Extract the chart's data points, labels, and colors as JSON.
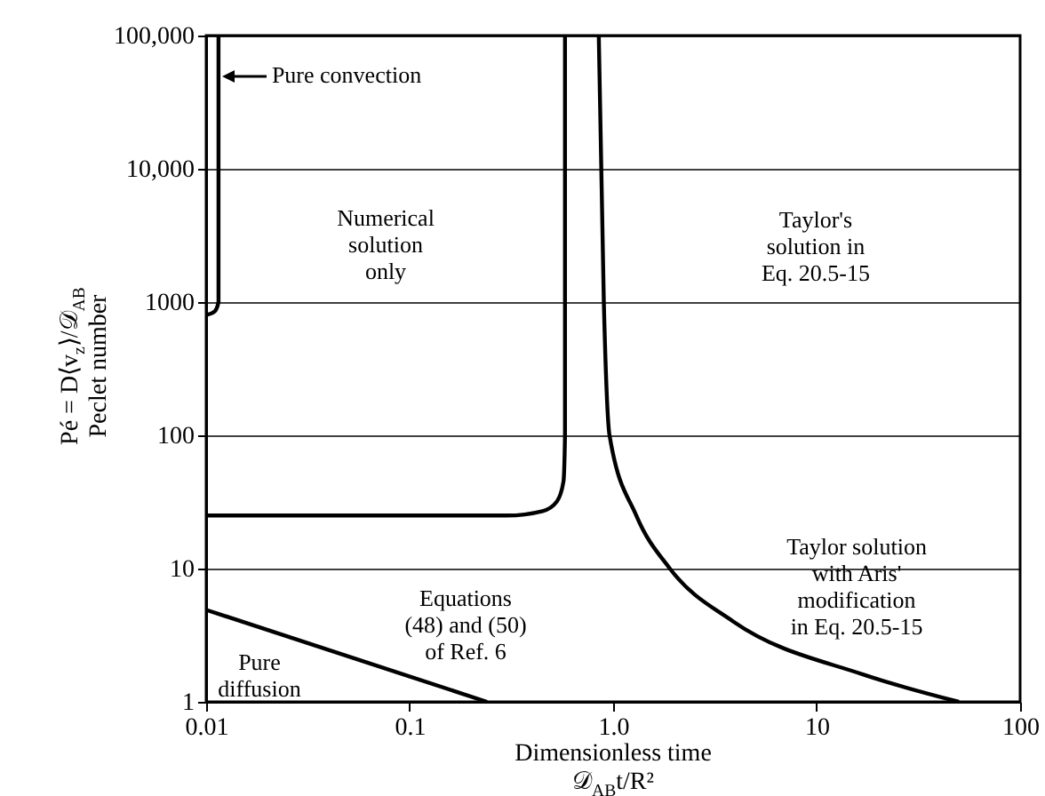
{
  "chart_data": {
    "type": "line",
    "xlabel": "Dimensionless time\n𝒟$_{AB}$t/R²",
    "ylabel": "Pé = D⟨v$_{z}$⟩/𝒟$_{AB}$\nPeclet number",
    "log": "xy",
    "grid": "y",
    "line_style": "solid",
    "marker": "none",
    "xlim": [
      0.01,
      100
    ],
    "xticks": [
      0.01,
      0.1,
      {
        "value": 1,
        "label": "1.0"
      },
      10,
      100
    ],
    "ylim": [
      1,
      100000
    ],
    "yticks": [
      1,
      10,
      100,
      {
        "value": 1000,
        "label": "1000"
      },
      {
        "value": 10000,
        "label": "10,000"
      },
      {
        "value": 100000,
        "label": "100,000"
      }
    ],
    "series": [
      {
        "color": "#000000",
        "x": [
          0.0115,
          0.0115,
          0.011,
          0.01
        ],
        "values": [
          100000,
          1000,
          850,
          800
        ]
      },
      {
        "color": "#000000",
        "x": [
          0.01,
          0.3,
          0.45,
          0.53,
          0.57,
          0.58,
          0.58
        ],
        "values": [
          25,
          25,
          27,
          32,
          45,
          100,
          100000
        ]
      },
      {
        "color": "#000000",
        "x": [
          0.85,
          0.9,
          0.96,
          1.3,
          1.9,
          3.9,
          17,
          50
        ],
        "values": [
          100000,
          1000,
          100,
          25,
          10,
          4,
          1.6,
          1
        ]
      },
      {
        "color": "#000000",
        "x": [
          0.01,
          0.24
        ],
        "values": [
          4.9,
          1
        ]
      }
    ],
    "annotations": [
      {
        "text": "Pure convection",
        "x": 0.0115,
        "y": 50000
      },
      "Numerical\nsolution\nonly",
      "Taylor's\nsolution in\nEq. 20.5-15",
      "Taylor solution\nwith Aris'\nmodification\nin Eq. 20.5-15",
      "Equations\n(48) and (50)\nof Ref. 6",
      "Pure\ndiffusion"
    ]
  }
}
